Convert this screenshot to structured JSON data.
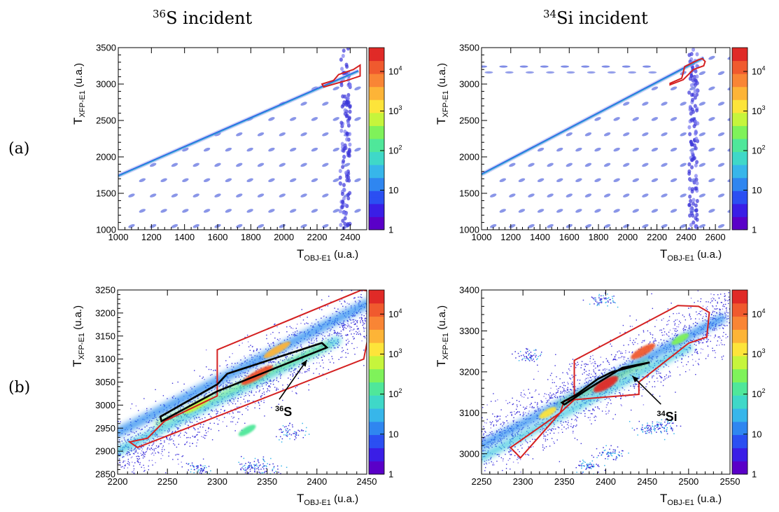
{
  "column_titles": [
    {
      "sup": "36",
      "text": "S incident"
    },
    {
      "sup": "34",
      "text": "Si incident"
    }
  ],
  "row_labels": [
    "(a)",
    "(b)"
  ],
  "colors": {
    "red_gate": "#d42020",
    "black_gate": "#000000",
    "colormap": [
      "#5a00c8",
      "#3a1ee6",
      "#2b4ff2",
      "#2f86f0",
      "#37b6ea",
      "#3fd8c8",
      "#4fe79a",
      "#7ff25a",
      "#c6f53c",
      "#fde43a",
      "#fdb437",
      "#f98535",
      "#f05a2e",
      "#e02a27"
    ]
  },
  "chart_data": [
    {
      "id": "a-left",
      "type": "heatmap",
      "title": "",
      "xlabel": {
        "main": "T",
        "sub": "OBJ-E1",
        "unit": "(u.a.)"
      },
      "ylabel": {
        "main": "T",
        "sub": "XFP-E1",
        "unit": "(u.a.)"
      },
      "xlim": [
        1000,
        2500
      ],
      "ylim": [
        1000,
        3500
      ],
      "xticks": [
        1000,
        1200,
        1400,
        1600,
        1800,
        2000,
        2200,
        2400
      ],
      "yticks": [
        1000,
        1500,
        2000,
        2500,
        3000,
        3500
      ],
      "zscale": "log",
      "zlim": [
        1,
        40000
      ],
      "zticks": [
        "1",
        "10",
        "10^2",
        "10^3",
        "10^4"
      ],
      "main_band": {
        "x": [
          1000,
          2450
        ],
        "y": [
          1740,
          3180
        ]
      },
      "blob_grid": {
        "x_start": 1080,
        "x_step": 130,
        "y_start": 1050,
        "y_step": 210
      },
      "vertical_band": {
        "x": [
          2340,
          2400
        ]
      },
      "gates": [
        {
          "color": "red",
          "points": [
            [
              2230,
              3000
            ],
            [
              2300,
              3050
            ],
            [
              2330,
              3130
            ],
            [
              2420,
              3200
            ],
            [
              2460,
              3260
            ],
            [
              2460,
              3110
            ],
            [
              2380,
              3050
            ],
            [
              2240,
              2960
            ]
          ]
        }
      ],
      "annotations": []
    },
    {
      "id": "a-right",
      "type": "heatmap",
      "title": "",
      "xlabel": {
        "main": "T",
        "sub": "OBJ-E1",
        "unit": "(u.a.)"
      },
      "ylabel": {
        "main": "T",
        "sub": "XFP-E1",
        "unit": "(u.a.)"
      },
      "xlim": [
        1000,
        2700
      ],
      "ylim": [
        1000,
        3500
      ],
      "xticks": [
        1000,
        1200,
        1400,
        1600,
        1800,
        2000,
        2200,
        2400,
        2600
      ],
      "yticks": [
        1000,
        1500,
        2000,
        2500,
        3000,
        3500
      ],
      "zscale": "log",
      "zlim": [
        1,
        40000
      ],
      "zticks": [
        "1",
        "10",
        "10^2",
        "10^3",
        "10^4"
      ],
      "main_band": {
        "x": [
          1000,
          2520
        ],
        "y": [
          1760,
          3360
        ]
      },
      "blob_grid": {
        "x_start": 1080,
        "x_step": 130,
        "y_start": 1050,
        "y_step": 210
      },
      "vertical_band": {
        "x": [
          2420,
          2480
        ]
      },
      "gates": [
        {
          "color": "red",
          "points": [
            [
              2290,
              3010
            ],
            [
              2370,
              3080
            ],
            [
              2390,
              3240
            ],
            [
              2430,
              3280
            ],
            [
              2480,
              3330
            ],
            [
              2510,
              3350
            ],
            [
              2530,
              3310
            ],
            [
              2520,
              3250
            ],
            [
              2450,
              3200
            ],
            [
              2380,
              3060
            ],
            [
              2290,
              2990
            ]
          ]
        }
      ],
      "annotations": []
    },
    {
      "id": "b-left",
      "type": "heatmap",
      "title": "",
      "xlabel": {
        "main": "T",
        "sub": "OBJ-E1",
        "unit": "(u.a.)"
      },
      "ylabel": {
        "main": "T",
        "sub": "XFP-E1",
        "unit": "(u.a.)"
      },
      "xlim": [
        2200,
        2450
      ],
      "ylim": [
        2850,
        3250
      ],
      "xticks": [
        2200,
        2250,
        2300,
        2350,
        2400,
        2450
      ],
      "yticks": [
        2850,
        2900,
        2950,
        3000,
        3050,
        3100,
        3150,
        3200,
        3250
      ],
      "zscale": "log",
      "zlim": [
        1,
        40000
      ],
      "zticks": [
        "1",
        "10",
        "10^2",
        "10^3",
        "10^4"
      ],
      "gates": [
        {
          "color": "red",
          "points": [
            [
              2212,
              2920
            ],
            [
              2220,
              2908
            ],
            [
              2447,
              3100
            ],
            [
              2460,
              3245
            ],
            [
              2445,
              3250
            ],
            [
              2300,
              3120
            ],
            [
              2300,
              3020
            ],
            [
              2247,
              2965
            ],
            [
              2230,
              2928
            ]
          ]
        },
        {
          "color": "black",
          "points": [
            [
              2243,
              2975
            ],
            [
              2300,
              3045
            ],
            [
              2310,
              3068
            ],
            [
              2405,
              3135
            ],
            [
              2410,
              3125
            ],
            [
              2300,
              3030
            ],
            [
              2244,
              2965
            ]
          ]
        }
      ],
      "annotations": [
        {
          "sup": "36",
          "text": "S",
          "x": 2365,
          "y": 2985,
          "arrow_to": [
            2390,
            3098
          ]
        }
      ]
    },
    {
      "id": "b-right",
      "type": "heatmap",
      "title": "",
      "xlabel": {
        "main": "T",
        "sub": "OBJ-E1",
        "unit": "(u.a.)"
      },
      "ylabel": {
        "main": "T",
        "sub": "XFP-E1",
        "unit": "(u.a.)"
      },
      "xlim": [
        2250,
        2550
      ],
      "ylim": [
        2950,
        3400
      ],
      "xticks": [
        2250,
        2300,
        2350,
        2400,
        2450,
        2500,
        2550
      ],
      "yticks": [
        3000,
        3100,
        3200,
        3300,
        3400
      ],
      "zscale": "log",
      "zlim": [
        1,
        40000
      ],
      "zticks": [
        "1",
        "10",
        "10^2",
        "10^3",
        "10^4"
      ],
      "gates": [
        {
          "color": "red",
          "points": [
            [
              2285,
              3015
            ],
            [
              2297,
              2990
            ],
            [
              2345,
              3100
            ],
            [
              2350,
              3130
            ],
            [
              2440,
              3145
            ],
            [
              2440,
              3175
            ],
            [
              2500,
              3270
            ],
            [
              2522,
              3285
            ],
            [
              2525,
              3345
            ],
            [
              2512,
              3360
            ],
            [
              2487,
              3362
            ],
            [
              2362,
              3228
            ],
            [
              2362,
              3132
            ],
            [
              2345,
              3100
            ],
            [
              2285,
              3015
            ]
          ]
        },
        {
          "color": "black",
          "points": [
            [
              2347,
              3125
            ],
            [
              2365,
              3145
            ],
            [
              2390,
              3182
            ],
            [
              2408,
              3200
            ],
            [
              2453,
              3223
            ],
            [
              2420,
              3210
            ],
            [
              2380,
              3160
            ],
            [
              2350,
              3120
            ]
          ]
        }
      ],
      "annotations": [
        {
          "sup": "34",
          "text": "Si",
          "x": 2470,
          "y": 3090,
          "arrow_to": [
            2432,
            3190
          ]
        }
      ]
    }
  ]
}
